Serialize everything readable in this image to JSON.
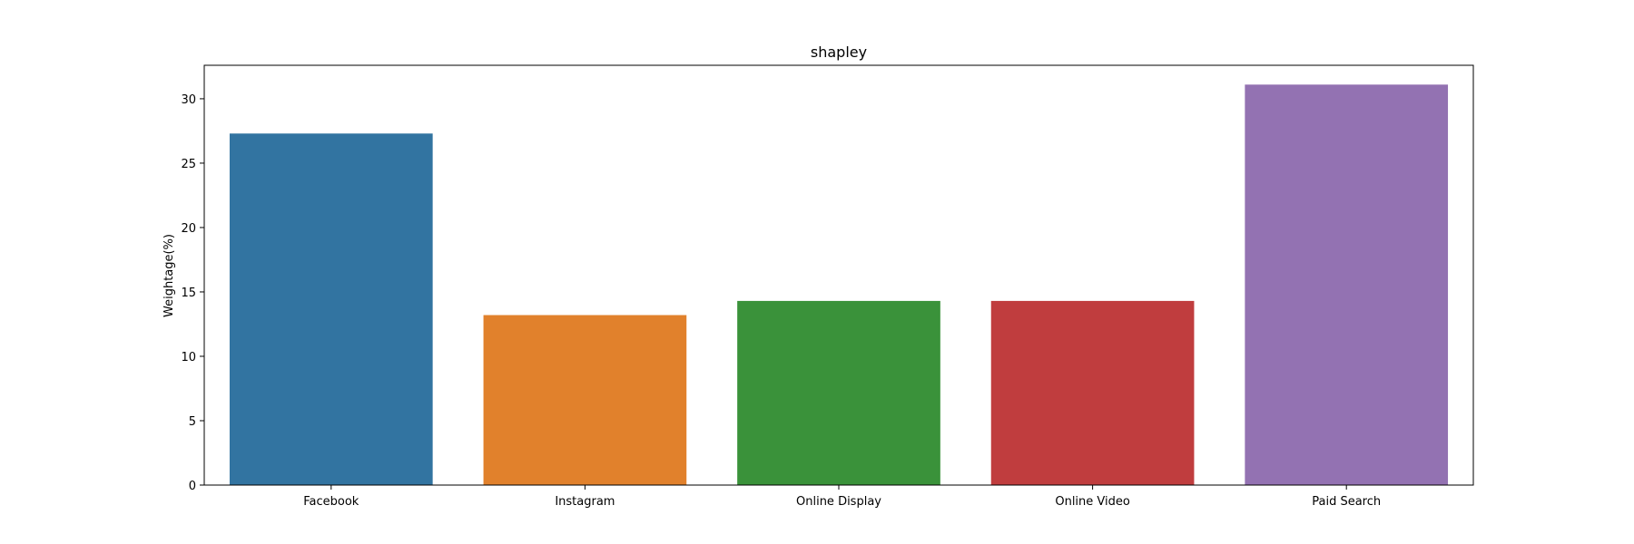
{
  "chart_data": {
    "type": "bar",
    "title": "shapley",
    "xlabel": "",
    "ylabel": "Weightage(%)",
    "categories": [
      "Facebook",
      "Instagram",
      "Online Display",
      "Online Video",
      "Paid Search"
    ],
    "values": [
      27.3,
      13.2,
      14.3,
      14.3,
      31.1
    ],
    "colors": [
      "#3274a1",
      "#e1812c",
      "#3a923a",
      "#c03d3e",
      "#9372b2"
    ],
    "ylim": [
      0,
      32.6
    ],
    "yticks": [
      0,
      5,
      10,
      15,
      20,
      25,
      30
    ],
    "grid": false,
    "legend": "none"
  }
}
